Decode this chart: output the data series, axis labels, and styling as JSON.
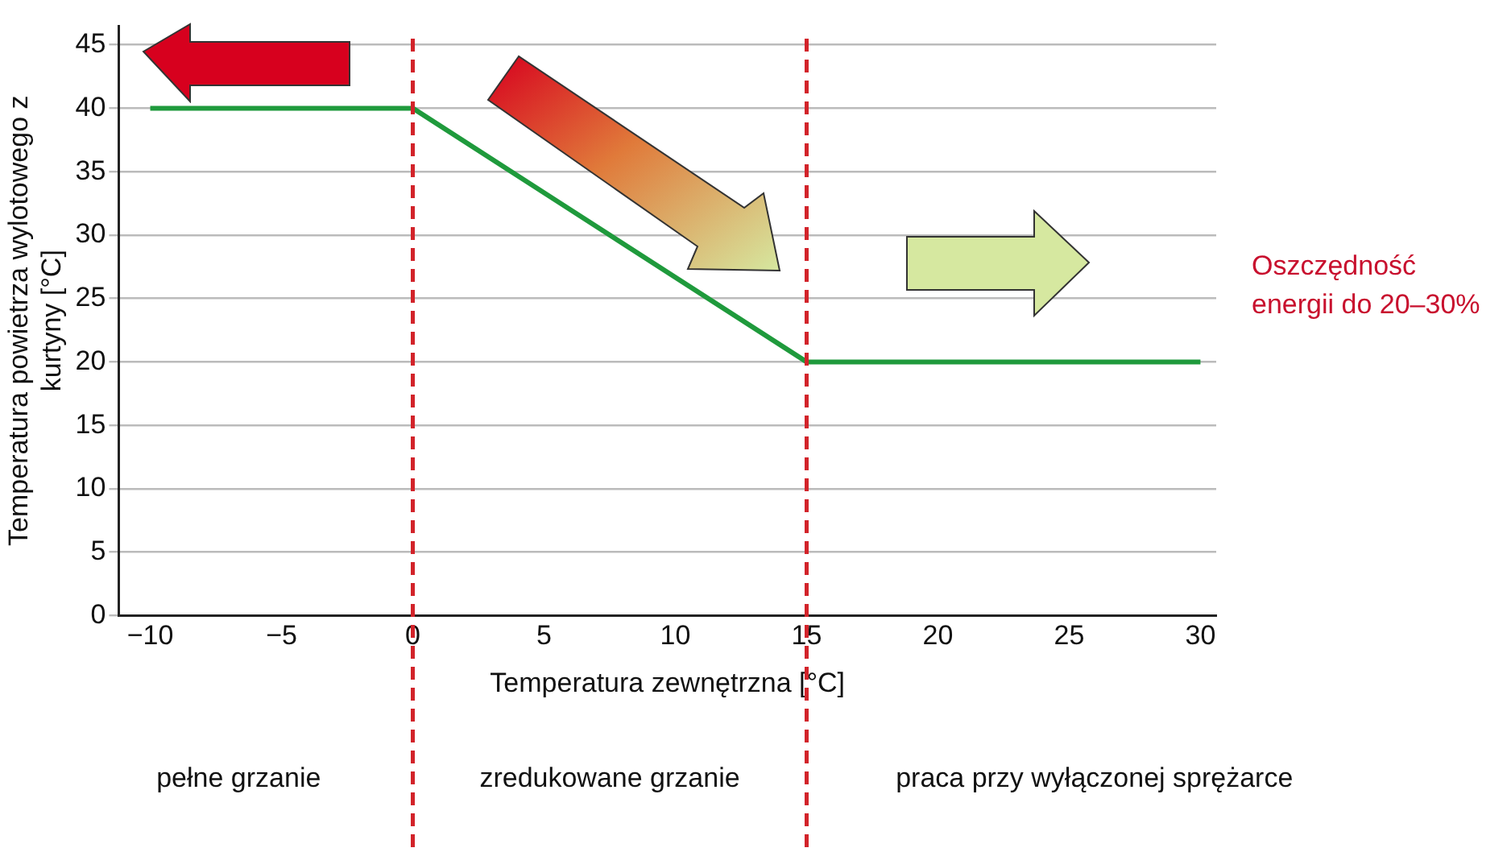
{
  "chart_data": {
    "type": "line",
    "xlabel": "Temperatura zewnętrzna [°C]",
    "ylabel": "Temperatura powietrza wylotowego z kurtyny [°C]",
    "x": [
      -10,
      0,
      15,
      30
    ],
    "series": [
      {
        "color": "#1f9a3c",
        "values": [
          40,
          40,
          20,
          20
        ]
      }
    ],
    "xlim": [
      -11.2,
      30.6
    ],
    "ylim": [
      0,
      46.5
    ],
    "xticks": [
      {
        "value": -10,
        "label": "−10"
      },
      {
        "value": -5,
        "label": "−5"
      },
      0,
      5,
      10,
      15,
      20,
      25,
      30
    ],
    "yticks": [
      0,
      5,
      10,
      15,
      20,
      25,
      30,
      35,
      40,
      45
    ],
    "grid": "y",
    "legend": false,
    "marker": "none",
    "line_style": "solid",
    "ref_lines": [
      {
        "axis": "x",
        "value": 0,
        "color": "#d2232a",
        "line_style": "dashed"
      },
      {
        "axis": "x",
        "value": 15,
        "color": "#d2232a",
        "line_style": "dashed"
      }
    ],
    "annotations": [
      "pełne grzanie",
      "zredukowane grzanie",
      "praca przy wyłączonej sprężarce",
      "Oszczędność energii do 20–30%"
    ]
  }
}
